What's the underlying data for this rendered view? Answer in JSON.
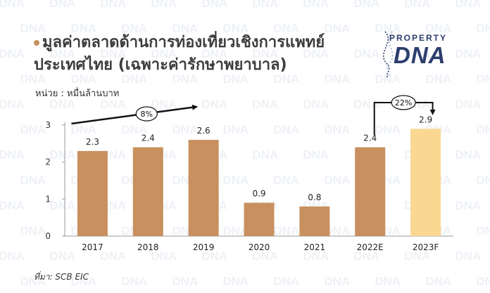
{
  "title_line1": "มูลค่าตลาดด้านการท่องเที่ยวเชิงการแพทย์",
  "title_line2": "ประเทศไทย (เฉพาะค่ารักษาพยาบาล)",
  "logo": {
    "line1": "PROPERTY",
    "line2": "DNA"
  },
  "watermark_text": "DNA",
  "source": "ที่มา: SCB EIC",
  "colors": {
    "bar": "#c8905e",
    "bar_forecast": "#fbd892",
    "title": "#3d3d3d",
    "logo": "#2c3e6d"
  },
  "chart_data": {
    "type": "bar",
    "ylabel": "หน่วย : หมื่นล้านบาท",
    "categories": [
      "2017",
      "2018",
      "2019",
      "2020",
      "2021",
      "2022E",
      "2023F"
    ],
    "values": [
      2.3,
      2.4,
      2.6,
      0.9,
      0.8,
      2.4,
      2.9
    ],
    "data_labels": [
      "2.3",
      "2.4",
      "2.6",
      "0.9",
      "0.8",
      "2.4",
      "2.9"
    ],
    "forecast_index": 6,
    "ylim": [
      0,
      3
    ],
    "yticks": [
      "0",
      "1",
      "2",
      "3"
    ],
    "grid": false,
    "annotations": [
      {
        "text": "8%",
        "from": "2017",
        "to": "2019"
      },
      {
        "text": "22%",
        "from": "2022E",
        "to": "2023F"
      }
    ]
  }
}
